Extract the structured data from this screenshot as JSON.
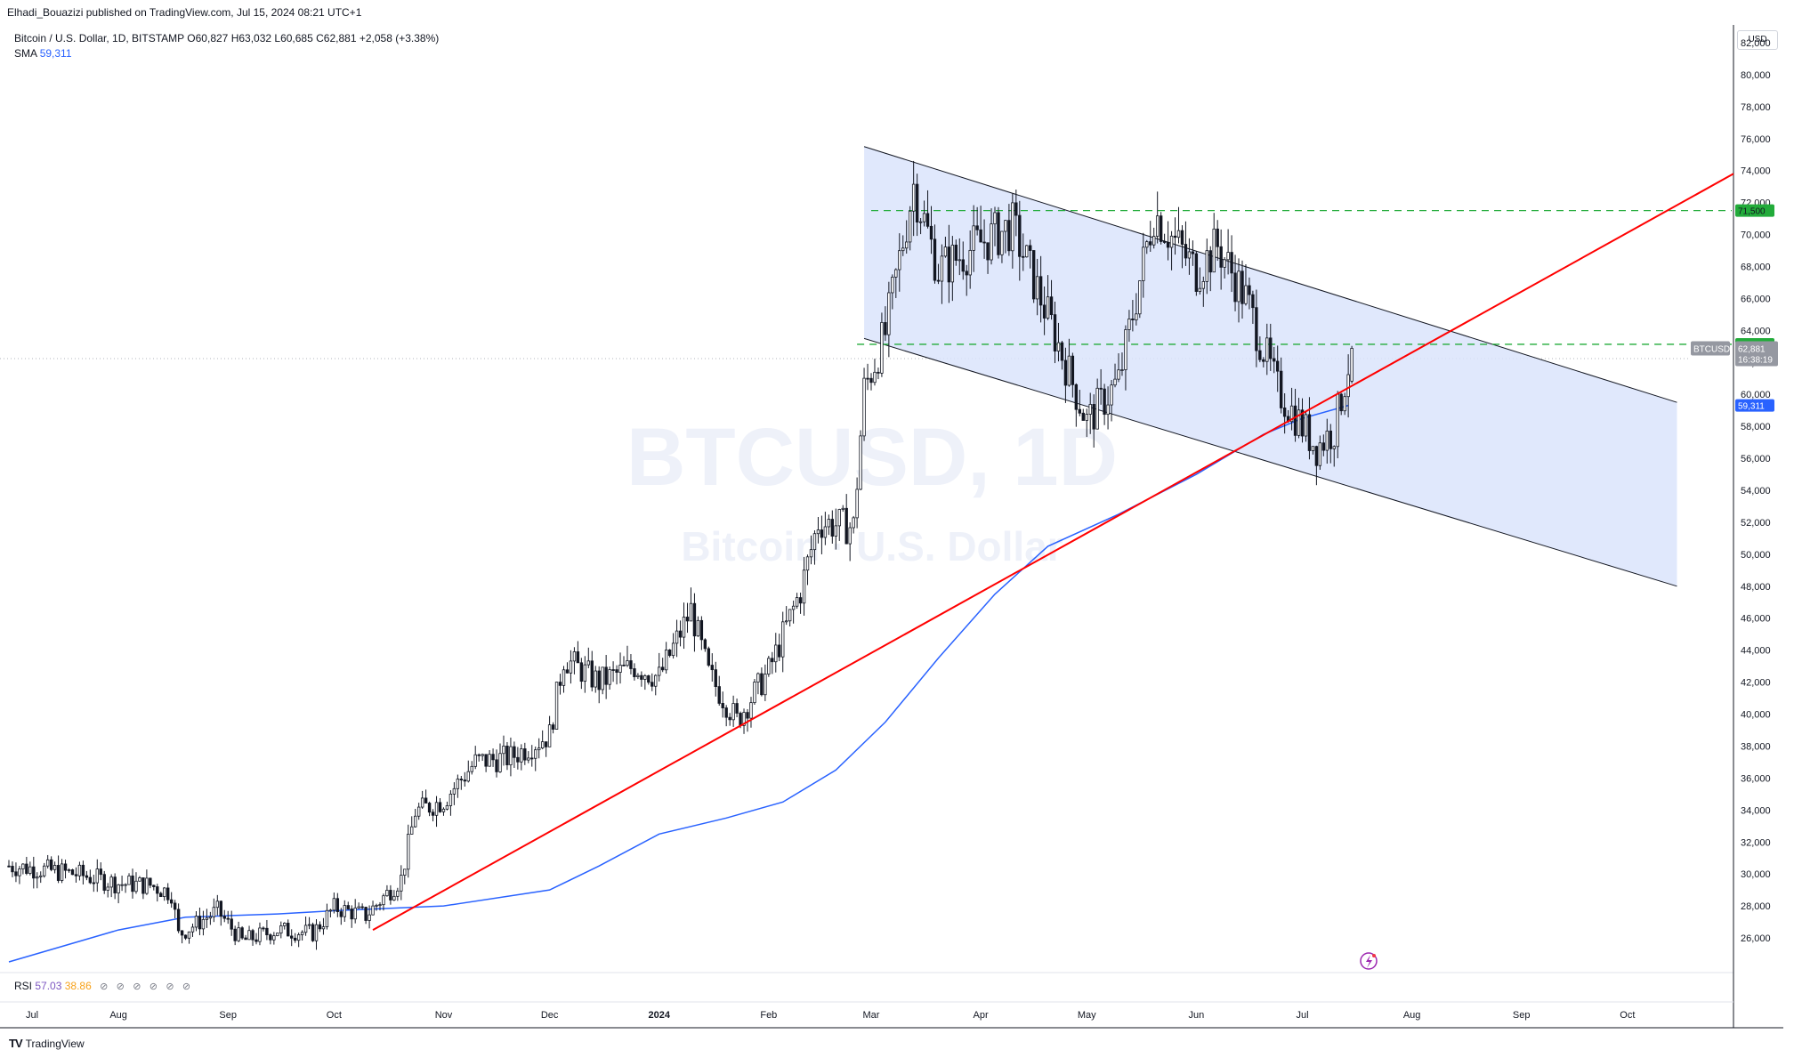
{
  "publisher_line": "Elhadi_Bouazizi published on TradingView.com, Jul 15, 2024 08:21 UTC+1",
  "legend": {
    "symbol": "Bitcoin / U.S. Dollar, 1D, BITSTAMP",
    "open": "O60,827",
    "high": "H63,032",
    "low": "L60,685",
    "close": "C62,881",
    "change": "+2,058 (+3.38%)",
    "sma_label": "SMA",
    "sma_value": "59,311"
  },
  "watermark": {
    "title": "BTCUSD, 1D",
    "subtitle": "Bitcoin · U.S. Dollar"
  },
  "price_axis": {
    "currency_button": "USD",
    "ticks": [
      "82,000",
      "80,000",
      "78,000",
      "76,000",
      "74,000",
      "72,000",
      "70,000",
      "68,000",
      "66,000",
      "64,000",
      "62,000",
      "60,000",
      "58,000",
      "56,000",
      "54,000",
      "52,000",
      "50,000",
      "48,000",
      "46,000",
      "44,000",
      "42,000",
      "40,000",
      "38,000",
      "36,000",
      "34,000",
      "32,000",
      "30,000",
      "28,000",
      "26,000"
    ],
    "level_labels": {
      "upper": "71,500",
      "lower": "63,132",
      "symbol_tag": "BTCUSD",
      "last_price": "62,881",
      "countdown": "16:38:19",
      "sma": "59,311"
    }
  },
  "time_axis": {
    "labels": [
      "Jul",
      "Aug",
      "Sep",
      "Oct",
      "Nov",
      "Dec",
      "2024",
      "Feb",
      "Mar",
      "Apr",
      "May",
      "Jun",
      "Jul",
      "Aug",
      "Sep",
      "Oct"
    ]
  },
  "rsi_legend": {
    "label": "RSI",
    "value1": "57.03",
    "value2": "38.86",
    "hidden_markers": [
      "⊘",
      "⊘",
      "⊘",
      "⊘",
      "⊘",
      "⊘"
    ]
  },
  "branding": {
    "logo": "TV",
    "name": "TradingView"
  },
  "colors": {
    "up": "#131722",
    "down": "#131722",
    "sma": "#2962ff",
    "trendline": "#ff0000",
    "channel_fill": "#dbe4fb",
    "channel_line": "#131722",
    "level_dash": "#22ab3a",
    "level_tag": "#22ab3a",
    "price_tag": "#9598a1",
    "sma_tag": "#2962ff"
  },
  "chart_data": {
    "type": "candlestick",
    "symbol": "BTCUSD",
    "timeframe": "1D",
    "ylim": [
      24000,
      83000
    ],
    "y_unit": "USD",
    "x_range": [
      "2023-07-01",
      "2024-10-31"
    ],
    "series": [
      {
        "name": "SMA",
        "points": [
          [
            "2023-07-01",
            24500
          ],
          [
            "2023-08-01",
            26500
          ],
          [
            "2023-08-20",
            27300
          ],
          [
            "2023-09-15",
            27500
          ],
          [
            "2023-10-01",
            27700
          ],
          [
            "2023-11-01",
            28000
          ],
          [
            "2023-12-01",
            29000
          ],
          [
            "2023-12-15",
            30500
          ],
          [
            "2024-01-01",
            32500
          ],
          [
            "2024-01-20",
            33500
          ],
          [
            "2024-02-05",
            34500
          ],
          [
            "2024-02-20",
            36500
          ],
          [
            "2024-03-05",
            39500
          ],
          [
            "2024-03-20",
            43500
          ],
          [
            "2024-04-05",
            47500
          ],
          [
            "2024-04-20",
            50500
          ],
          [
            "2024-05-10",
            52500
          ],
          [
            "2024-06-01",
            55000
          ],
          [
            "2024-06-20",
            57500
          ],
          [
            "2024-07-01",
            58500
          ],
          [
            "2024-07-14",
            59311
          ]
        ]
      },
      {
        "name": "Trendline",
        "points": [
          [
            "2023-10-12",
            26500
          ],
          [
            "2024-10-31",
            73800
          ]
        ]
      }
    ],
    "closes": [
      [
        "2023-07-01",
        30500
      ],
      [
        "2023-07-10",
        30300
      ],
      [
        "2023-07-20",
        30000
      ],
      [
        "2023-08-01",
        29400
      ],
      [
        "2023-08-10",
        29300
      ],
      [
        "2023-08-16",
        28800
      ],
      [
        "2023-08-18",
        26200
      ],
      [
        "2023-08-29",
        27700
      ],
      [
        "2023-09-05",
        25800
      ],
      [
        "2023-09-15",
        26500
      ],
      [
        "2023-09-25",
        26300
      ],
      [
        "2023-10-01",
        27900
      ],
      [
        "2023-10-10",
        27400
      ],
      [
        "2023-10-20",
        29700
      ],
      [
        "2023-10-24",
        33900
      ],
      [
        "2023-11-01",
        34600
      ],
      [
        "2023-11-10",
        37000
      ],
      [
        "2023-11-20",
        37300
      ],
      [
        "2023-12-01",
        38700
      ],
      [
        "2023-12-05",
        43500
      ],
      [
        "2023-12-15",
        42000
      ],
      [
        "2023-12-25",
        43000
      ],
      [
        "2024-01-01",
        42300
      ],
      [
        "2024-01-10",
        46500
      ],
      [
        "2024-01-15",
        42500
      ],
      [
        "2024-01-23",
        39600
      ],
      [
        "2024-02-01",
        42700
      ],
      [
        "2024-02-10",
        47700
      ],
      [
        "2024-02-15",
        52000
      ],
      [
        "2024-02-25",
        51700
      ],
      [
        "2024-02-28",
        60300
      ],
      [
        "2024-03-05",
        63800
      ],
      [
        "2024-03-13",
        73100
      ],
      [
        "2024-03-20",
        67800
      ],
      [
        "2024-04-01",
        69500
      ],
      [
        "2024-04-10",
        70500
      ],
      [
        "2024-04-20",
        64900
      ],
      [
        "2024-05-01",
        58300
      ],
      [
        "2024-05-10",
        60800
      ],
      [
        "2024-05-20",
        71400
      ],
      [
        "2024-06-01",
        67700
      ],
      [
        "2024-06-07",
        69300
      ],
      [
        "2024-06-15",
        66000
      ],
      [
        "2024-06-24",
        60300
      ],
      [
        "2024-07-05",
        56700
      ],
      [
        "2024-07-10",
        57800
      ],
      [
        "2024-07-13",
        60800
      ],
      [
        "2024-07-15",
        62881
      ]
    ],
    "channel": {
      "upper": [
        [
          "2024-02-28",
          75500
        ],
        [
          "2024-10-15",
          59500
        ]
      ],
      "lower": [
        [
          "2024-02-28",
          63500
        ],
        [
          "2024-10-15",
          48000
        ]
      ]
    },
    "horizontal_levels": [
      71500,
      63132
    ],
    "last_price": 62881,
    "sma_last": 59311,
    "rsi": [
      57.03,
      38.86
    ]
  }
}
